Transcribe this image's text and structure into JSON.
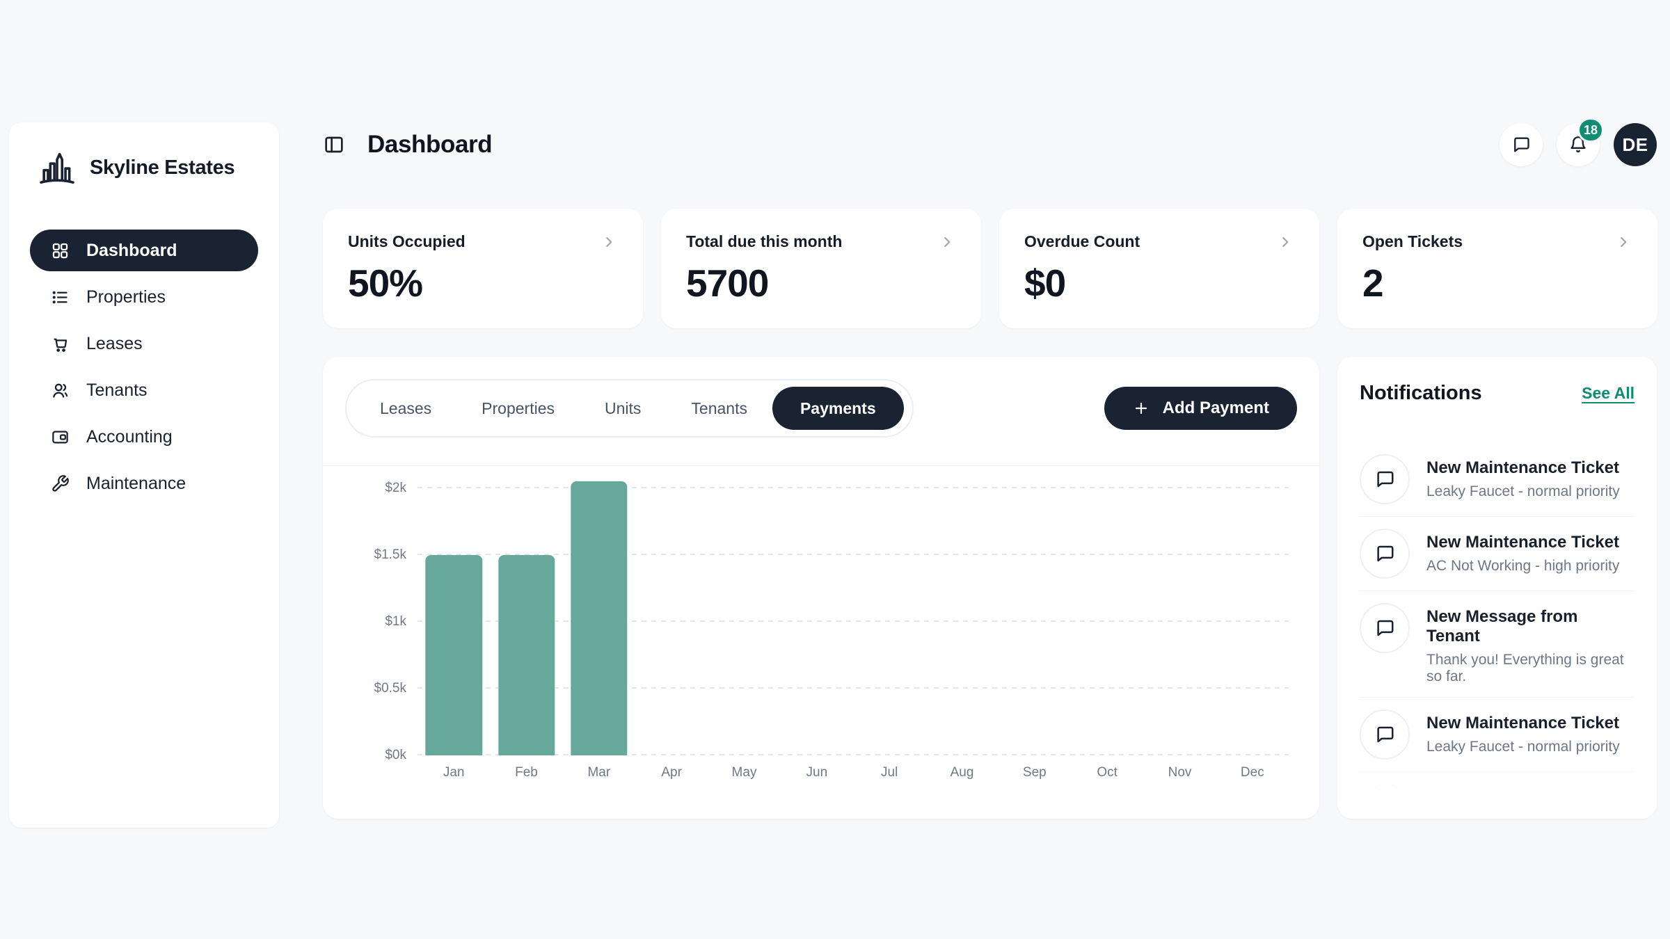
{
  "app": {
    "name": "Skyline Estates",
    "logo_icon": "skyline-buildings-icon"
  },
  "header": {
    "title": "Dashboard",
    "toggle_icon": "panel-left-icon",
    "messages_icon": "chat-bubble-icon",
    "bell_icon": "bell-icon",
    "notification_badge_count": "18",
    "avatar_initials": "DE"
  },
  "sidebar": {
    "items": [
      {
        "label": "Dashboard",
        "icon": "grid-icon",
        "active": true
      },
      {
        "label": "Properties",
        "icon": "list-icon",
        "active": false
      },
      {
        "label": "Leases",
        "icon": "cart-icon",
        "active": false
      },
      {
        "label": "Tenants",
        "icon": "users-icon",
        "active": false
      },
      {
        "label": "Accounting",
        "icon": "wallet-icon",
        "active": false
      },
      {
        "label": "Maintenance",
        "icon": "wrench-icon",
        "active": false
      }
    ]
  },
  "stat_cards": [
    {
      "label": "Units Occupied",
      "value": "50%"
    },
    {
      "label": "Total due this month",
      "value": "5700"
    },
    {
      "label": "Overdue Count",
      "value": "$0"
    },
    {
      "label": "Open Tickets",
      "value": "2"
    }
  ],
  "tabs": {
    "items": [
      "Leases",
      "Properties",
      "Units",
      "Tenants",
      "Payments"
    ],
    "active": "Payments"
  },
  "add_payment": {
    "label": "Add Payment",
    "icon": "plus-icon"
  },
  "chart_data": {
    "type": "bar",
    "title": "",
    "categories": [
      "Jan",
      "Feb",
      "Mar",
      "Apr",
      "May",
      "Jun",
      "Jul",
      "Aug",
      "Sep",
      "Oct",
      "Nov",
      "Dec"
    ],
    "values": [
      1500,
      1500,
      2050,
      0,
      0,
      0,
      0,
      0,
      0,
      0,
      0,
      0
    ],
    "xlabel": "",
    "ylabel": "",
    "ylim": [
      0,
      2050
    ],
    "y_ticks": [
      {
        "value": 0,
        "label": "$0k"
      },
      {
        "value": 500,
        "label": "$0.5k"
      },
      {
        "value": 1000,
        "label": "$1k"
      },
      {
        "value": 1500,
        "label": "$1.5k"
      },
      {
        "value": 2000,
        "label": "$2k"
      }
    ],
    "grid": "dashed-horizontal",
    "legend": "none",
    "bar_color": "#66A89A"
  },
  "notifications": {
    "title": "Notifications",
    "see_all_label": "See All",
    "items": [
      {
        "title": "New Maintenance Ticket",
        "subtitle": "Leaky Faucet - normal priority",
        "icon": "chat-bubble-icon"
      },
      {
        "title": "New Maintenance Ticket",
        "subtitle": "AC Not Working - high priority",
        "icon": "chat-bubble-icon"
      },
      {
        "title": "New Message from Tenant",
        "subtitle": "Thank you! Everything is great so far.",
        "icon": "chat-bubble-icon"
      },
      {
        "title": "New Maintenance Ticket",
        "subtitle": "Leaky Faucet - normal priority",
        "icon": "chat-bubble-icon"
      },
      {
        "icon": "chat-bubble-icon",
        "clipped": true
      }
    ]
  },
  "colors": {
    "page_bg": "#F7F8FA",
    "card_bg": "#FFFFFF",
    "dark_navy": "#1A2332",
    "text_primary": "#141B26",
    "text_secondary": "#6C7789",
    "border": "#EDF0F3",
    "accent_teal": "#66A89A",
    "badge_green": "#0F8E74",
    "link_green": "#0E8C72"
  }
}
